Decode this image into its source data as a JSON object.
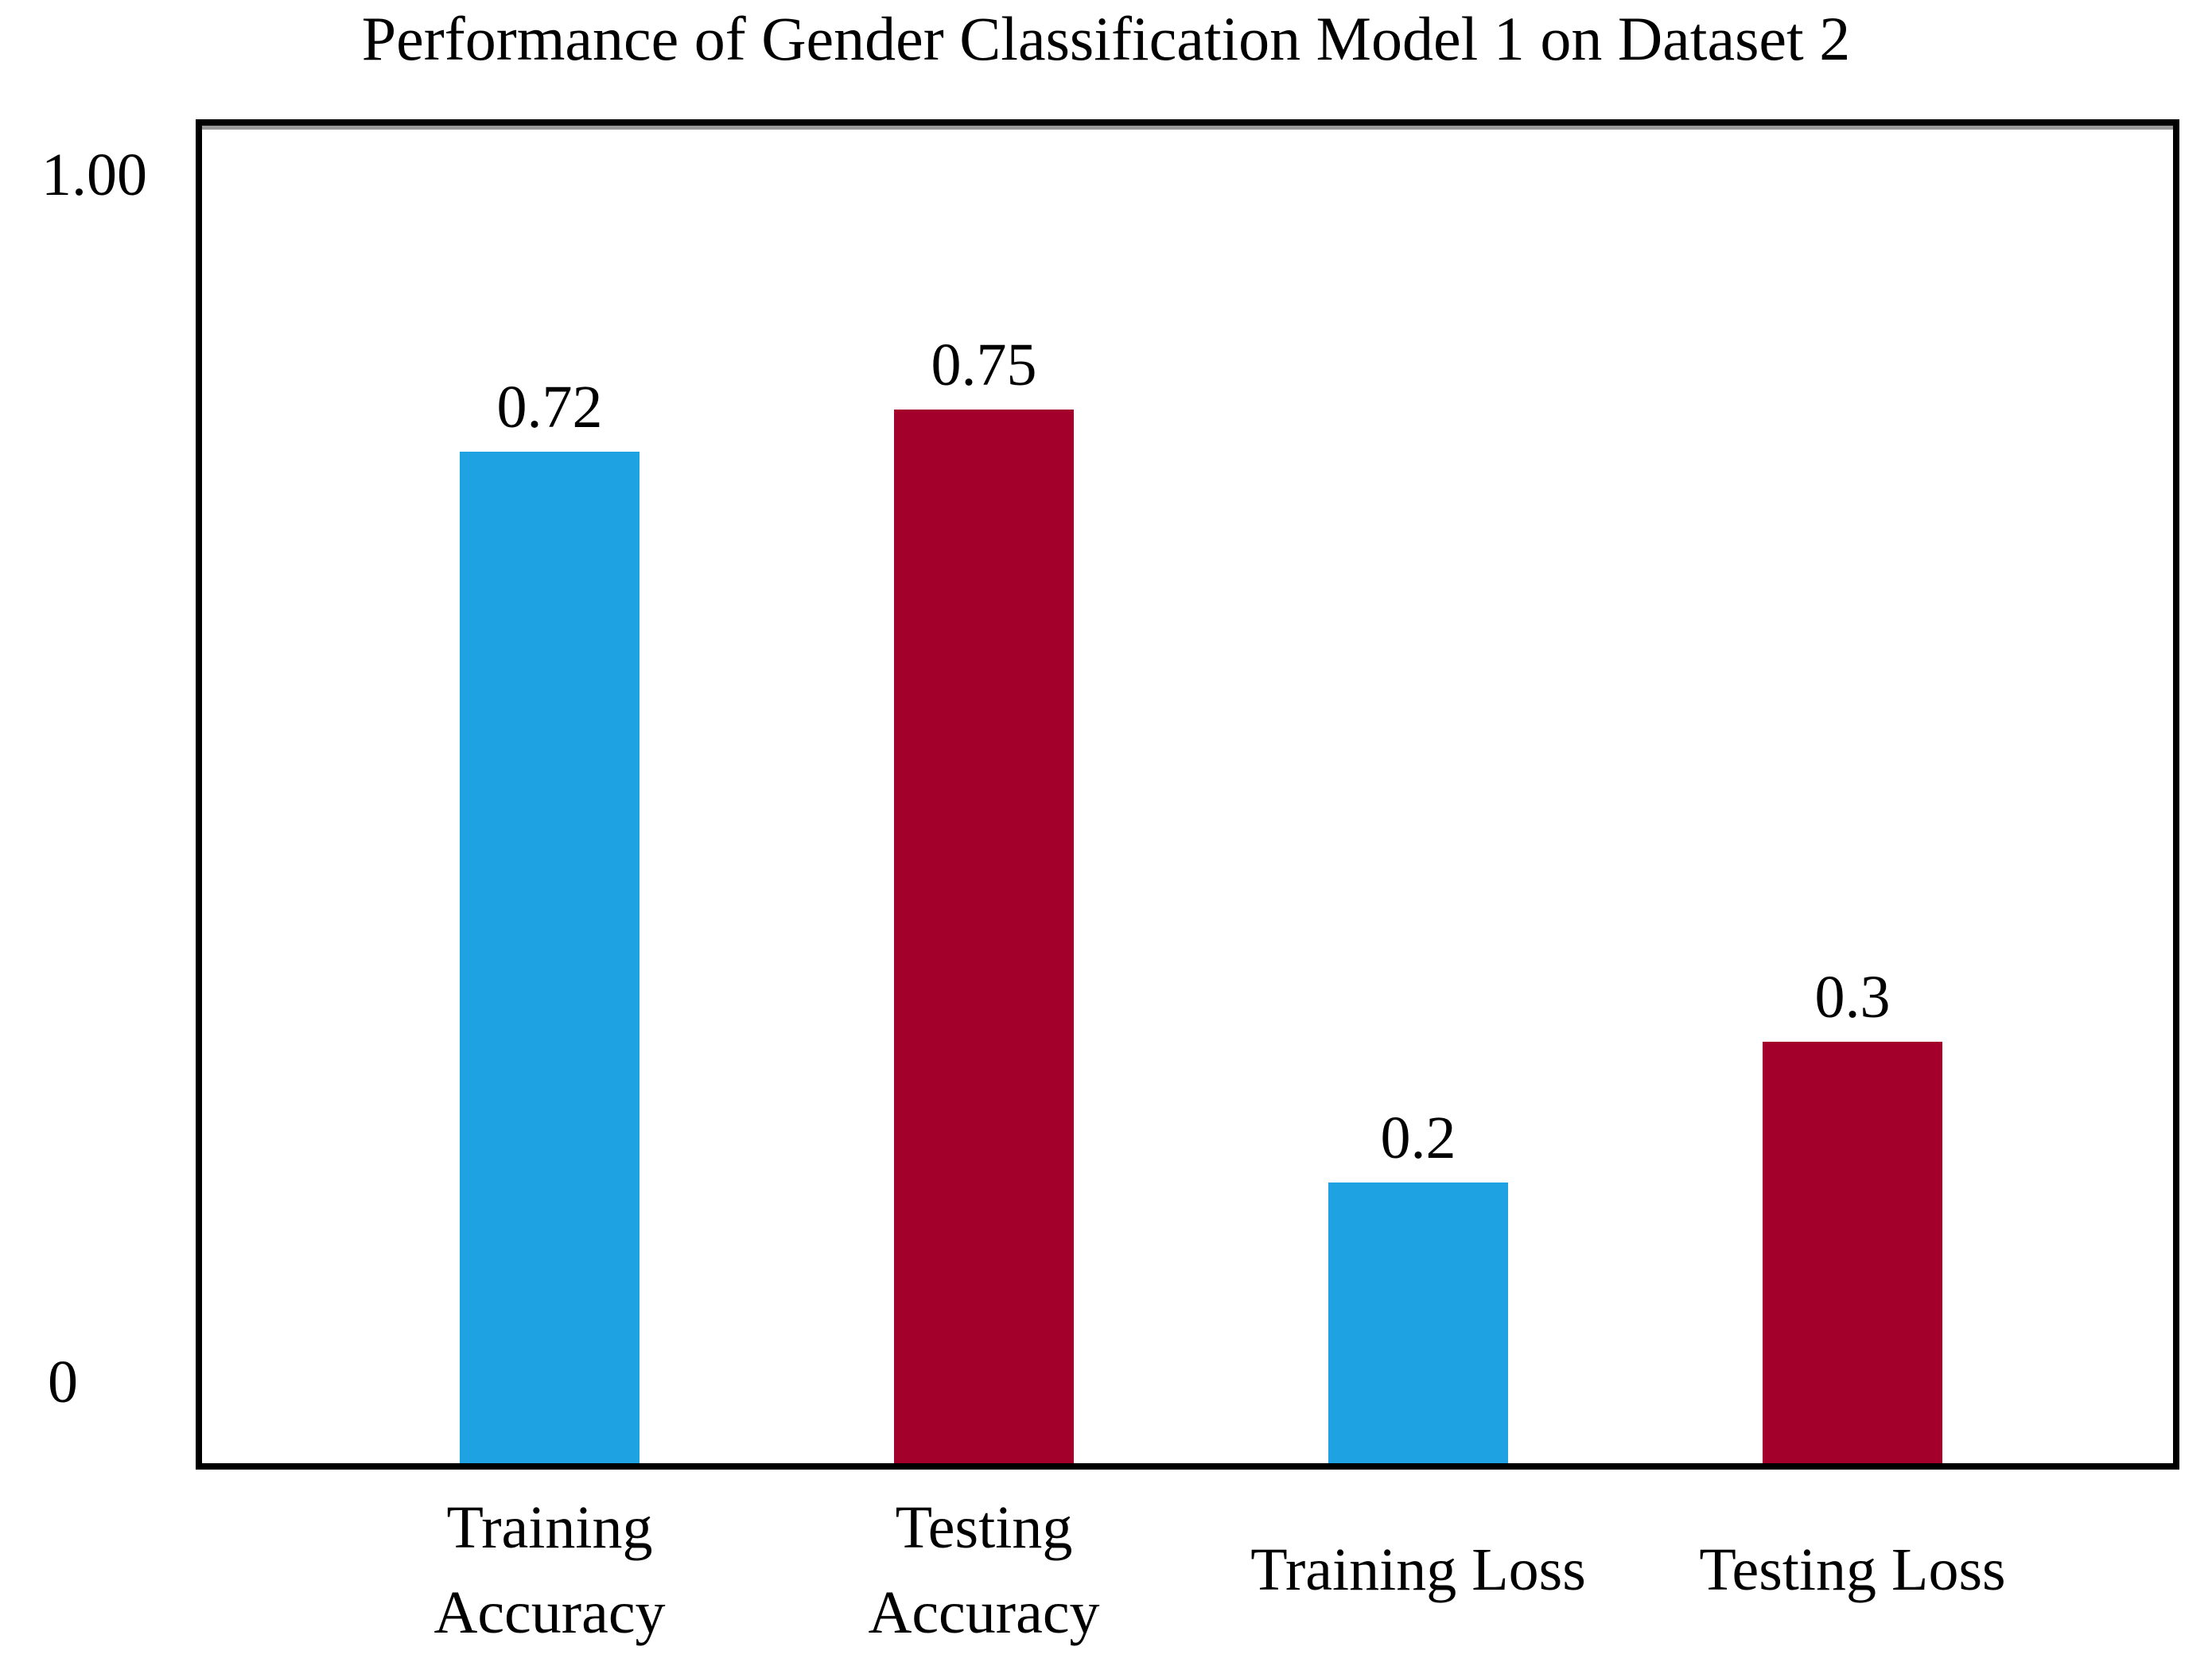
{
  "chart_data": {
    "type": "bar",
    "title": "Performance of Gender Classification Model 1 on Dataset 2",
    "categories": [
      "Training Accuracy",
      "Testing Accuracy",
      "Training Loss",
      "Testing Loss"
    ],
    "display_labels": [
      "Training\nAccuracy",
      "Testing\nAccuracy",
      "Training Loss",
      "Testing Loss"
    ],
    "values": [
      0.72,
      0.75,
      0.2,
      0.3
    ],
    "value_labels": [
      "0.72",
      "0.75",
      "0.2",
      "0.3"
    ],
    "bar_colors": [
      "#1FA2E1",
      "#A3012C",
      "#1FA2E1",
      "#A3012C"
    ],
    "ytick_labels": [
      "1.00",
      "0"
    ],
    "ylim": [
      0,
      1.0
    ],
    "xlabel": "",
    "ylabel": "",
    "grid": false,
    "legend": "none",
    "colors": {
      "training_series": "#1FA2E1",
      "testing_series": "#A3012C",
      "axis_border": "#000000",
      "text": "#000000",
      "background": "#FFFFFF"
    }
  }
}
